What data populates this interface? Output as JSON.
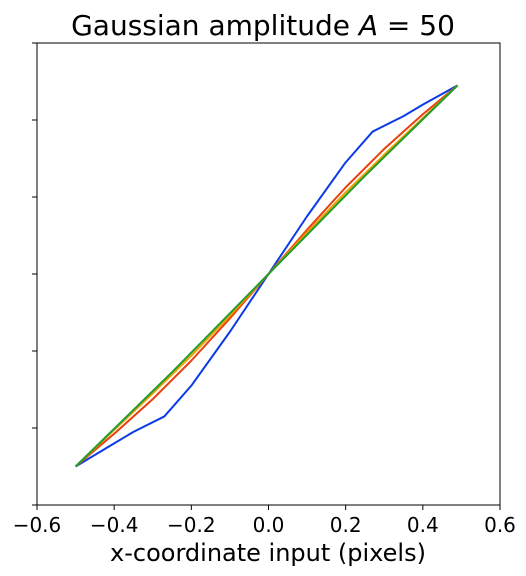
{
  "chart_data": {
    "type": "line",
    "title": {
      "prefix": "Gaussian amplitude ",
      "variable": "A",
      "suffix": " = 50"
    },
    "xlabel": "x-coordinate input (pixels)",
    "ylabel": "",
    "xlim": [
      -0.6,
      0.6
    ],
    "ylim": [
      -0.6,
      0.6
    ],
    "x_ticks": [
      -0.6,
      -0.4,
      -0.2,
      0.0,
      0.2,
      0.4,
      0.6
    ],
    "x_tick_labels": [
      "−0.6",
      "−0.4",
      "−0.2",
      "0.0",
      "0.2",
      "0.4",
      "0.6"
    ],
    "y_ticks": [
      -0.6,
      -0.4,
      -0.2,
      0.0,
      0.2,
      0.4,
      0.6
    ],
    "grid": false,
    "series": [
      {
        "color": "#0b3be8",
        "x": [
          -0.5,
          -0.4,
          -0.35,
          -0.27,
          -0.2,
          -0.1,
          0.0,
          0.1,
          0.2,
          0.27,
          0.35,
          0.4,
          0.49
        ],
        "y": [
          -0.5,
          -0.44,
          -0.41,
          -0.37,
          -0.29,
          -0.15,
          0.0,
          0.15,
          0.29,
          0.37,
          0.41,
          0.44,
          0.49
        ]
      },
      {
        "color": "#e8400f",
        "x": [
          -0.5,
          -0.4,
          -0.3,
          -0.2,
          -0.1,
          0.0,
          0.1,
          0.2,
          0.3,
          0.4,
          0.49
        ],
        "y": [
          -0.5,
          -0.415,
          -0.325,
          -0.225,
          -0.115,
          0.0,
          0.115,
          0.225,
          0.325,
          0.415,
          0.49
        ]
      },
      {
        "color": "#f0a000",
        "x": [
          -0.5,
          -0.4,
          -0.3,
          -0.2,
          -0.1,
          0.0,
          0.1,
          0.2,
          0.3,
          0.4,
          0.49
        ],
        "y": [
          -0.5,
          -0.405,
          -0.31,
          -0.212,
          -0.108,
          0.0,
          0.108,
          0.212,
          0.31,
          0.405,
          0.49
        ]
      },
      {
        "color": "#1f9e2e",
        "x": [
          -0.5,
          -0.25,
          0.0,
          0.25,
          0.49
        ],
        "y": [
          -0.5,
          -0.255,
          0.0,
          0.255,
          0.49
        ]
      }
    ]
  }
}
